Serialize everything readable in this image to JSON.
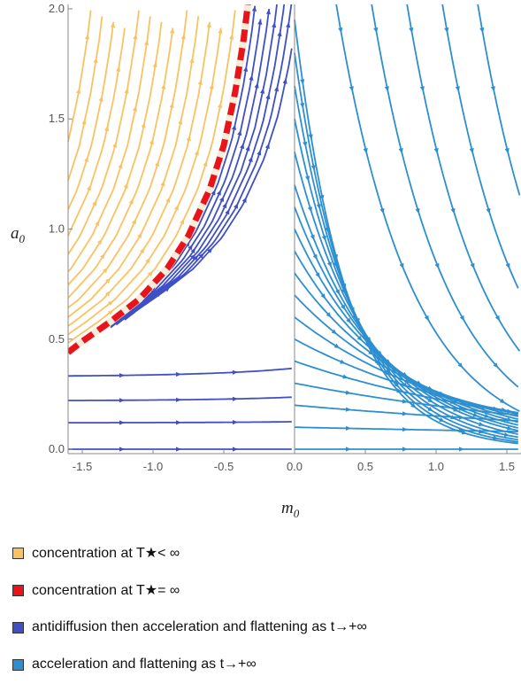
{
  "chart_data": {
    "type": "stream",
    "xlabel": "m0",
    "ylabel": "a0",
    "xlim": [
      -1.6,
      1.6
    ],
    "ylim": [
      -0.02,
      2.02
    ],
    "xticks": [
      "-1.5",
      "-1.0",
      "-0.5",
      "0.0",
      "0.5",
      "1.0",
      "1.5"
    ],
    "xtick_values": [
      -1.5,
      -1.0,
      -0.5,
      0.0,
      0.5,
      1.0,
      1.5
    ],
    "yticks": [
      "0.0",
      "0.5",
      "1.0",
      "1.5",
      "2.0"
    ],
    "ytick_values": [
      0.0,
      0.5,
      1.0,
      1.5,
      2.0
    ],
    "critical_curve": {
      "points": [
        [
          -1.6,
          0.44
        ],
        [
          -1.5,
          0.49
        ],
        [
          -1.3,
          0.58
        ],
        [
          -1.1,
          0.68
        ],
        [
          -0.9,
          0.82
        ],
        [
          -0.75,
          0.97
        ],
        [
          -0.6,
          1.18
        ],
        [
          -0.5,
          1.38
        ],
        [
          -0.42,
          1.62
        ],
        [
          -0.36,
          1.86
        ],
        [
          -0.33,
          2.02
        ]
      ]
    },
    "regions": [
      {
        "name": "concentration at T★< ∞",
        "color": "#f9c262"
      },
      {
        "name": "concentration at T★= ∞",
        "color": "#e8131b"
      },
      {
        "name": "antidiffusion then acceleration and flattening as t→+∞",
        "color": "#3f4fc4"
      },
      {
        "name": "acceleration and flattening as t→+∞",
        "color": "#2d8fd0"
      }
    ]
  },
  "axes": {
    "xlabel_main": "m",
    "xlabel_sub": "0",
    "ylabel_main": "a",
    "ylabel_sub": "0"
  },
  "legend": {
    "items": [
      {
        "label": "concentration at T★< ∞",
        "color": "#f9c262"
      },
      {
        "label": "concentration at T★= ∞",
        "color": "#e8131b"
      },
      {
        "label": "antidiffusion then acceleration and flattening as t→+∞",
        "color": "#3f4fc4"
      },
      {
        "label": "acceleration and flattening as t→+∞",
        "color": "#2d8fd0"
      }
    ]
  }
}
